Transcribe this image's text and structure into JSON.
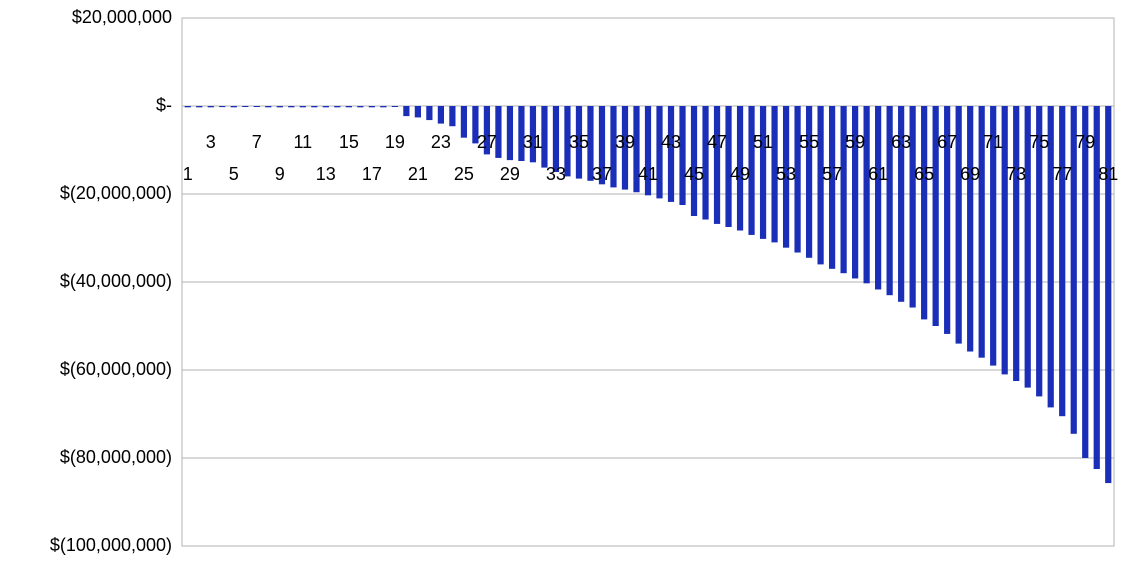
{
  "chart_data": {
    "type": "bar",
    "categories": [
      "1",
      null,
      "3",
      null,
      "5",
      null,
      "7",
      null,
      "9",
      null,
      "11",
      null,
      "13",
      null,
      "15",
      null,
      "17",
      null,
      "19",
      null,
      "21",
      null,
      "23",
      null,
      "25",
      null,
      "27",
      null,
      "29",
      null,
      "31",
      null,
      "33",
      null,
      "35",
      null,
      "37",
      null,
      "39",
      null,
      "41",
      null,
      "43",
      null,
      "45",
      null,
      "47",
      null,
      "49",
      null,
      "51",
      null,
      "53",
      null,
      "55",
      null,
      "57",
      null,
      "59",
      null,
      "61",
      null,
      "63",
      null,
      "65",
      null,
      "67",
      null,
      "69",
      null,
      "71",
      null,
      "73",
      null,
      "75",
      null,
      "77",
      null,
      "79",
      null,
      "81"
    ],
    "values": [
      -300000,
      -300000,
      -300000,
      -250000,
      -300000,
      -200000,
      -150000,
      -300000,
      -300000,
      -300000,
      -300000,
      -300000,
      -300000,
      -300000,
      -300000,
      -300000,
      -300000,
      -300000,
      -200000,
      -2300000,
      -2600000,
      -3200000,
      -4000000,
      -4600000,
      -7200000,
      -8500000,
      -11000000,
      -11800000,
      -12300000,
      -12500000,
      -12800000,
      -14000000,
      -15000000,
      -16000000,
      -16500000,
      -17000000,
      -17800000,
      -18500000,
      -19000000,
      -19600000,
      -20300000,
      -21000000,
      -21800000,
      -22500000,
      -25000000,
      -25800000,
      -26800000,
      -27500000,
      -28300000,
      -29300000,
      -30200000,
      -31000000,
      -32200000,
      -33300000,
      -34500000,
      -36000000,
      -37000000,
      -38000000,
      -39200000,
      -40300000,
      -41700000,
      -43000000,
      -44500000,
      -45800000,
      -48500000,
      -50000000,
      -51800000,
      -54000000,
      -55800000,
      -57200000,
      -59000000,
      -61000000,
      -62500000,
      -64000000,
      -66000000,
      -68500000,
      -70500000,
      -74500000,
      -80000000,
      -82500000,
      -85700000
    ],
    "color": "#1a2eb8",
    "ylim": [
      -100000000,
      20000000
    ],
    "yticks": [
      {
        "value": -100000000,
        "label": "$(100,000,000)"
      },
      {
        "value": -80000000,
        "label": "$(80,000,000)"
      },
      {
        "value": -60000000,
        "label": "$(60,000,000)"
      },
      {
        "value": -40000000,
        "label": "$(40,000,000)"
      },
      {
        "value": -20000000,
        "label": "$(20,000,000)"
      },
      {
        "value": 0,
        "label": "$-"
      },
      {
        "value": 20000000,
        "label": "$20,000,000"
      }
    ],
    "grid": true
  }
}
